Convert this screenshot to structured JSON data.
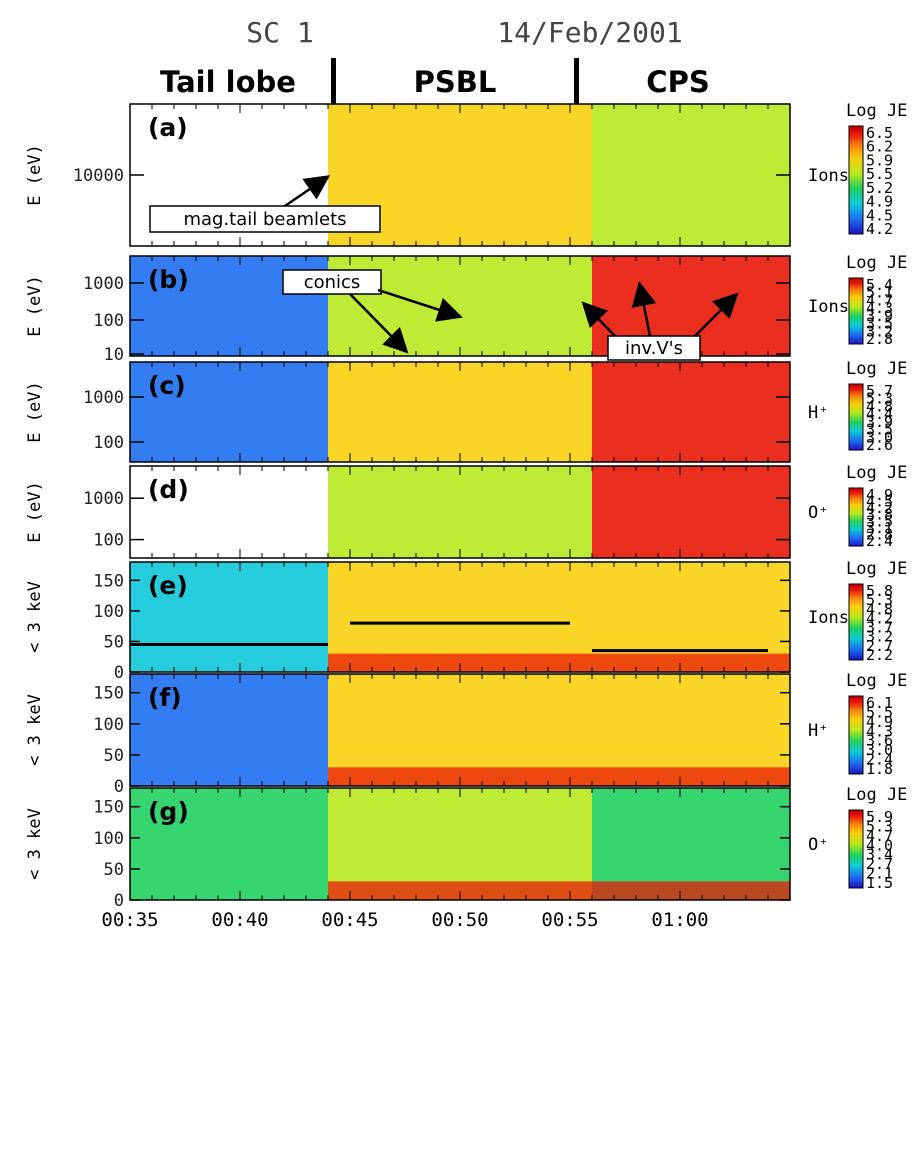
{
  "header": {
    "spacecraft": "SC 1",
    "date": "14/Feb/2001"
  },
  "regions": [
    {
      "label": "Tail lobe",
      "start": "00:35",
      "end": "00:44"
    },
    {
      "label": "PSBL",
      "start": "00:44",
      "end": "00:56"
    },
    {
      "label": "CPS",
      "start": "00:56",
      "end": "01:05"
    }
  ],
  "colors": {
    "spectrogram_scale": [
      "#1a10c0",
      "#1e6ef0",
      "#10c8d8",
      "#20d060",
      "#b8e820",
      "#f8d010",
      "#f88010",
      "#e81808",
      "#c00000"
    ]
  },
  "chart_data": [
    {
      "type": "heatmap",
      "panel": "(a)",
      "ylabel": "E (eV)",
      "yticks": [
        "10000"
      ],
      "species": "Ions",
      "colorbar_title": "Log JE",
      "colorbar_ticks": [
        "6.5",
        "6.2",
        "5.9",
        "5.5",
        "5.2",
        "4.9",
        "4.5",
        "4.2"
      ],
      "annotations": [
        "mag.tail beamlets"
      ],
      "xlim": [
        "00:35",
        "01:05"
      ]
    },
    {
      "type": "heatmap",
      "panel": "(b)",
      "ylabel": "E (eV)",
      "yticks": [
        "1000",
        "100",
        "10"
      ],
      "species": "Ions",
      "colorbar_title": "Log JE",
      "colorbar_ticks": [
        "5.4",
        "5.1",
        "4.7",
        "4.3",
        "3.9",
        "3.5",
        "3.2",
        "2.8"
      ],
      "annotations": [
        "conics",
        "inv.V's"
      ],
      "xlim": [
        "00:35",
        "01:05"
      ]
    },
    {
      "type": "heatmap",
      "panel": "(c)",
      "ylabel": "E (eV)",
      "yticks": [
        "1000",
        "100"
      ],
      "species": "H⁺",
      "colorbar_title": "Log JE",
      "colorbar_ticks": [
        "5.7",
        "5.3",
        "4.8",
        "4.4",
        "3.9",
        "3.5",
        "3.0",
        "2.6"
      ],
      "xlim": [
        "00:35",
        "01:05"
      ]
    },
    {
      "type": "heatmap",
      "panel": "(d)",
      "ylabel": "E (eV)",
      "yticks": [
        "1000",
        "100"
      ],
      "species": "O⁺",
      "colorbar_title": "Log JE",
      "colorbar_ticks": [
        "4.9",
        "4.5",
        "4.2",
        "3.8",
        "3.5",
        "3.1",
        "2.8",
        "2.4"
      ],
      "xlim": [
        "00:35",
        "01:05"
      ]
    },
    {
      "type": "heatmap",
      "panel": "(e)",
      "ylabel": "< 3 keV",
      "yticks": [
        "150",
        "100",
        "50",
        "0"
      ],
      "ylim": [
        0,
        180
      ],
      "species": "Ions",
      "colorbar_title": "Log JE",
      "colorbar_ticks": [
        "5.8",
        "5.3",
        "4.8",
        "4.2",
        "3.7",
        "3.2",
        "2.7",
        "2.2"
      ],
      "reference_lines": [
        {
          "start": "00:35",
          "end": "00:44",
          "value": 45
        },
        {
          "start": "00:45",
          "end": "00:55",
          "value": 80
        },
        {
          "start": "00:56",
          "end": "01:04",
          "value": 35
        }
      ],
      "xlim": [
        "00:35",
        "01:05"
      ]
    },
    {
      "type": "heatmap",
      "panel": "(f)",
      "ylabel": "< 3 keV",
      "yticks": [
        "150",
        "100",
        "50",
        "0"
      ],
      "ylim": [
        0,
        180
      ],
      "species": "H⁺",
      "colorbar_title": "Log JE",
      "colorbar_ticks": [
        "6.1",
        "5.5",
        "4.9",
        "4.3",
        "3.6",
        "3.0",
        "2.4",
        "1.8"
      ],
      "xlim": [
        "00:35",
        "01:05"
      ]
    },
    {
      "type": "heatmap",
      "panel": "(g)",
      "ylabel": "< 3 keV",
      "yticks": [
        "150",
        "100",
        "50",
        "0"
      ],
      "ylim": [
        0,
        180
      ],
      "species": "O⁺",
      "colorbar_title": "Log JE",
      "colorbar_ticks": [
        "5.9",
        "5.3",
        "4.7",
        "4.0",
        "3.4",
        "2.7",
        "2.1",
        "1.5"
      ],
      "xticks": [
        "00:35",
        "00:40",
        "00:45",
        "00:50",
        "00:55",
        "01:00"
      ],
      "xlim": [
        "00:35",
        "01:05"
      ]
    }
  ]
}
